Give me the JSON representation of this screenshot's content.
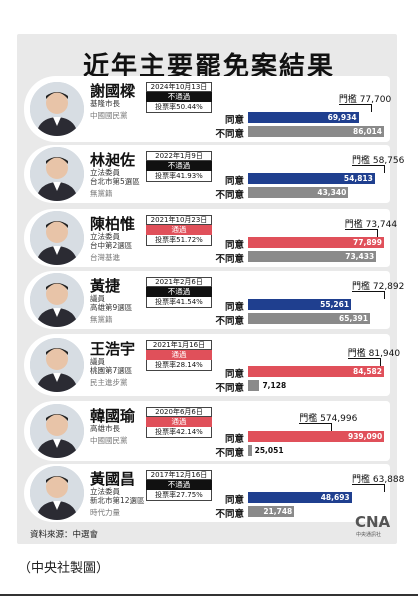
{
  "title": "近年主要罷免案結果",
  "labels": {
    "agree": "同意",
    "disagree": "不同意",
    "threshold_prefix": "門檻"
  },
  "colors": {
    "passed": "#e0505a",
    "failed": "#111111",
    "agree_fail": "#1f3f8f",
    "disagree": "#8a8a8a"
  },
  "source": "資料來源：中選會",
  "logo": {
    "mark": "CNA",
    "sub": "中央通訊社"
  },
  "caption": "（中央社製圖）",
  "chart_data": {
    "type": "bar",
    "title": "近年主要罷免案結果",
    "categories": [
      "謝國樑",
      "林昶佐",
      "陳柏惟",
      "黃捷",
      "王浩宇",
      "韓國瑜",
      "黃國昌"
    ],
    "series": [
      {
        "name": "同意",
        "values": [
          69934,
          54813,
          77899,
          55261,
          84582,
          939090,
          48693
        ]
      },
      {
        "name": "不同意",
        "values": [
          86014,
          43340,
          73433,
          65391,
          7128,
          25051,
          21748
        ]
      }
    ],
    "thresholds": [
      77700,
      58756,
      73744,
      72892,
      81940,
      574996,
      63888
    ],
    "entries": [
      {
        "name": "謝國樑",
        "position": [
          "基隆市長"
        ],
        "party": "中國國民黨",
        "date": "2024年10月13日",
        "result": "不通過",
        "passed": false,
        "turnout": "投票率50.44%",
        "agree": 69934,
        "disagree": 86014,
        "threshold": 77700,
        "agree_label": "69,934",
        "disagree_label": "86,014",
        "threshold_label": "77,700"
      },
      {
        "name": "林昶佐",
        "position": [
          "立法委員",
          "台北市第5選區"
        ],
        "party": "無黨籍",
        "date": "2022年1月9日",
        "result": "不通過",
        "passed": false,
        "turnout": "投票率41.93%",
        "agree": 54813,
        "disagree": 43340,
        "threshold": 58756,
        "agree_label": "54,813",
        "disagree_label": "43,340",
        "threshold_label": "58,756"
      },
      {
        "name": "陳柏惟",
        "position": [
          "立法委員",
          "台中第2選區"
        ],
        "party": "台灣基進",
        "date": "2021年10月23日",
        "result": "通過",
        "passed": true,
        "turnout": "投票率51.72%",
        "agree": 77899,
        "disagree": 73433,
        "threshold": 73744,
        "agree_label": "77,899",
        "disagree_label": "73,433",
        "threshold_label": "73,744"
      },
      {
        "name": "黃捷",
        "position": [
          "議員",
          "高雄第9選區"
        ],
        "party": "無黨籍",
        "date": "2021年2月6日",
        "result": "不通過",
        "passed": false,
        "turnout": "投票率41.54%",
        "agree": 55261,
        "disagree": 65391,
        "threshold": 72892,
        "agree_label": "55,261",
        "disagree_label": "65,391",
        "threshold_label": "72,892"
      },
      {
        "name": "王浩宇",
        "position": [
          "議員",
          "桃園第7選區"
        ],
        "party": "民主進步黨",
        "date": "2021年1月16日",
        "result": "通過",
        "passed": true,
        "turnout": "投票率28.14%",
        "agree": 84582,
        "disagree": 7128,
        "threshold": 81940,
        "agree_label": "84,582",
        "disagree_label": "7,128",
        "threshold_label": "81,940"
      },
      {
        "name": "韓國瑜",
        "position": [
          "高雄市長"
        ],
        "party": "中國國民黨",
        "date": "2020年6月6日",
        "result": "通過",
        "passed": true,
        "turnout": "投票率42.14%",
        "agree": 939090,
        "disagree": 25051,
        "threshold": 574996,
        "agree_label": "939,090",
        "disagree_label": "25,051",
        "threshold_label": "574,996"
      },
      {
        "name": "黃國昌",
        "position": [
          "立法委員",
          "新北市第12選區"
        ],
        "party": "時代力量",
        "date": "2017年12月16日",
        "result": "不通過",
        "passed": false,
        "turnout": "投票率27.75%",
        "agree": 48693,
        "disagree": 21748,
        "threshold": 63888,
        "agree_label": "48,693",
        "disagree_label": "21,748",
        "threshold_label": "63,888"
      }
    ]
  }
}
